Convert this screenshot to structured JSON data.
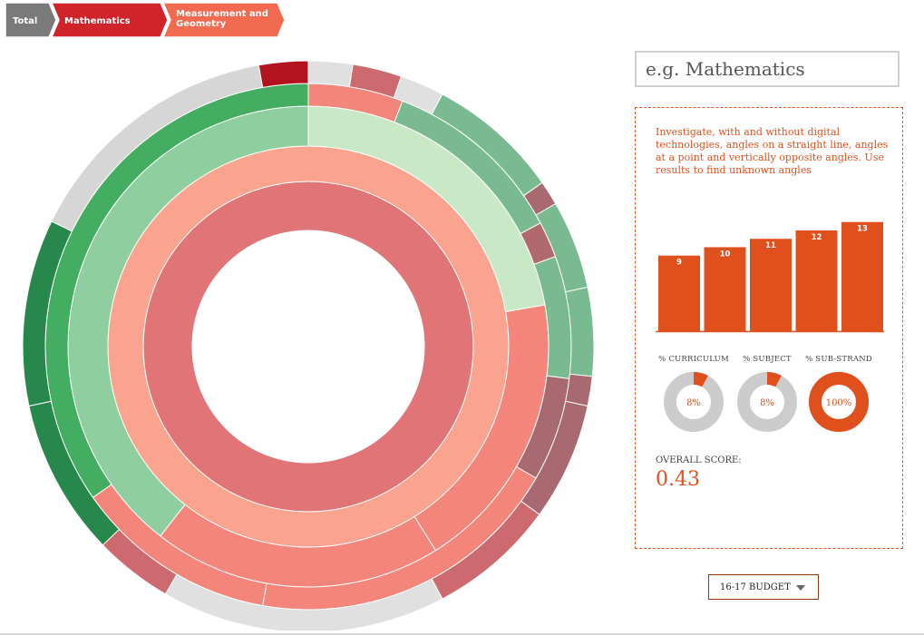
{
  "breadcrumb": {
    "items": [
      {
        "label_lines": [
          "Total"
        ],
        "color": "#7a7a7a"
      },
      {
        "label_lines": [
          "Mathematics"
        ],
        "color": "#d0232a"
      },
      {
        "label_lines": [
          "Measurement and",
          "Geometry"
        ],
        "color": "#f26a4f"
      }
    ]
  },
  "search": {
    "placeholder": "e.g. Mathematics"
  },
  "info": {
    "description": "Investigate, with and without digital technologies, angles on a straight line, angles at a point and vertically opposite angles. Use results to find unknown angles",
    "score_label": "OVERALL SCORE:",
    "score_value": "0.43"
  },
  "budget": {
    "label": "16-17 BUDGET"
  },
  "colors": {
    "accent": "#e0501c",
    "donut_track": "#cccccc"
  },
  "chart_data": [
    {
      "type": "bar",
      "categories": [
        "9",
        "10",
        "11",
        "12",
        "13"
      ],
      "values": [
        9,
        10,
        11,
        12,
        13
      ],
      "data_labels": [
        "9",
        "10",
        "11",
        "12",
        "13"
      ],
      "ylim": [
        0,
        13.4
      ],
      "color": "#e0501c"
    },
    {
      "type": "pie",
      "donuts": [
        {
          "label": "% CURRICULUM",
          "value": 8,
          "text": "8%"
        },
        {
          "label": "% SUBJECT",
          "value": 8,
          "text": "8%"
        },
        {
          "label": "% SUB-STRAND",
          "value": 100,
          "text": "100%"
        }
      ]
    },
    {
      "type": "pie",
      "style": "sunburst",
      "rings": [
        [
          {
            "start": 0,
            "end": 360,
            "color": "#e07476"
          }
        ],
        [
          {
            "start": 0,
            "end": 360,
            "color": "#faa48f"
          }
        ],
        [
          {
            "start": 0,
            "end": 80,
            "color": "#c8e8c6"
          },
          {
            "start": 80,
            "end": 148,
            "color": "#f4857b"
          },
          {
            "start": 148,
            "end": 218,
            "color": "#f4857b"
          },
          {
            "start": 218,
            "end": 360,
            "color": "#8fce9e"
          }
        ],
        [
          {
            "start": 0,
            "end": 21,
            "color": "#f4857b"
          },
          {
            "start": 21,
            "end": 62,
            "color": "#7aba90"
          },
          {
            "start": 62,
            "end": 70,
            "color": "#b06a6e"
          },
          {
            "start": 70,
            "end": 97,
            "color": "#7aba90"
          },
          {
            "start": 97,
            "end": 120,
            "color": "#a86a70"
          },
          {
            "start": 120,
            "end": 190,
            "color": "#f4857b"
          },
          {
            "start": 190,
            "end": 235,
            "color": "#f4857b"
          },
          {
            "start": 235,
            "end": 360,
            "color": "#43ad61"
          }
        ],
        [
          {
            "start": 0,
            "end": 9,
            "color": "#e0e0e0"
          },
          {
            "start": 9,
            "end": 19,
            "color": "#cd6a6f"
          },
          {
            "start": 19,
            "end": 28,
            "color": "#e0e0e0"
          },
          {
            "start": 28,
            "end": 55,
            "color": "#7aba90"
          },
          {
            "start": 55,
            "end": 60,
            "color": "#a86a70"
          },
          {
            "start": 60,
            "end": 78,
            "color": "#7aba90"
          },
          {
            "start": 78,
            "end": 96,
            "color": "#7aba90"
          },
          {
            "start": 96,
            "end": 102,
            "color": "#a86a70"
          },
          {
            "start": 102,
            "end": 126,
            "color": "#a86a70"
          },
          {
            "start": 126,
            "end": 152,
            "color": "#cd6a6f"
          },
          {
            "start": 152,
            "end": 210,
            "color": "#e0e0e0"
          },
          {
            "start": 210,
            "end": 226,
            "color": "#cd6a6f"
          },
          {
            "start": 226,
            "end": 258,
            "color": "#26884a"
          },
          {
            "start": 258,
            "end": 296,
            "color": "#26884a"
          },
          {
            "start": 296,
            "end": 350,
            "color": "#d6d6d6"
          },
          {
            "start": 350,
            "end": 360,
            "color": "#b3121f"
          }
        ]
      ]
    }
  ]
}
